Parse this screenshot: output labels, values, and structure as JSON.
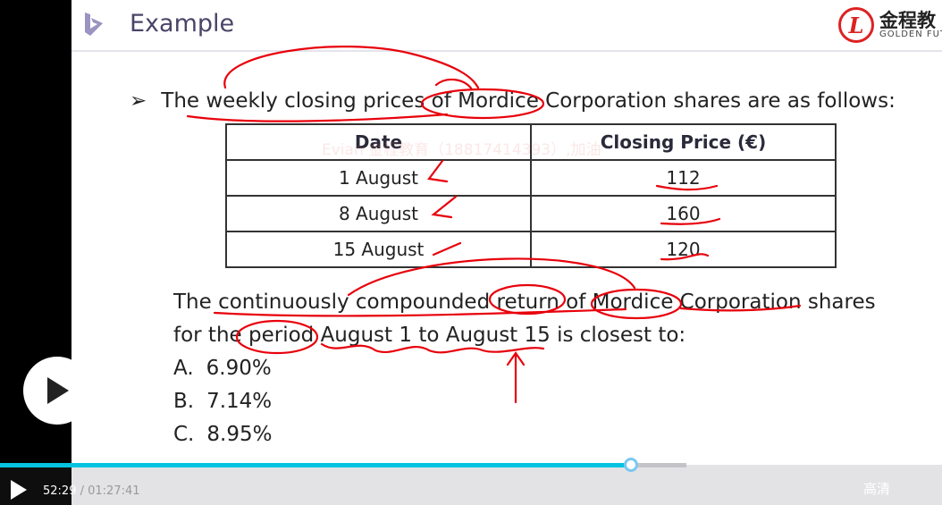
{
  "slide": {
    "title": "Example",
    "brand": {
      "cn": "金程教",
      "en": "GOLDEN FUT",
      "seal": "L"
    },
    "watermark": "Evian 金程教育（18817414393）,加油",
    "bullet_icon": "arrow-bullet-icon",
    "bullet_glyph": "➢",
    "bullet": "The weekly closing prices of Mordice Corporation shares are as follows:",
    "table": {
      "headers": [
        "Date",
        "Closing Price (€)"
      ],
      "rows": [
        [
          "1 August",
          "112"
        ],
        [
          "8 August",
          "160"
        ],
        [
          "15 August",
          "120"
        ]
      ]
    },
    "question": [
      "The continuously compounded return of Mordice Corporation shares",
      "for the period August 1 to August 15 is closest to:"
    ],
    "options": [
      {
        "letter": "A.",
        "text": "6.90%"
      },
      {
        "letter": "B.",
        "text": "7.14%"
      },
      {
        "letter": "C.",
        "text": "8.95%"
      }
    ],
    "annotation_color": "#e8000b"
  },
  "player": {
    "current_time": "52:29",
    "total_time": "/ 01:27:41",
    "progress": 0.598,
    "buffered": 0.73,
    "quality": "高清",
    "accent": "#05c3e0"
  }
}
